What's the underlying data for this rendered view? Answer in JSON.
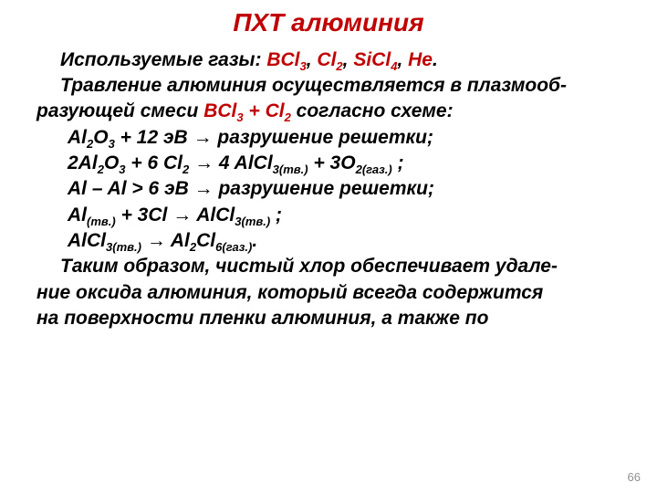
{
  "colors": {
    "red": "#c00000",
    "black": "#000000"
  },
  "title": "ПХТ алюминия",
  "gases_line": {
    "prefix": "Используемые газы: ",
    "g1a": "BCl",
    "g1s": "3",
    "sep1": ", ",
    "g2a": "Cl",
    "g2s": "2",
    "sep2": ", ",
    "g3a": "SiCl",
    "g3s": "4",
    "sep3": ", ",
    "g4": "He",
    "suffix": "."
  },
  "intro1": "Травление алюминия осуществляется в плазмооб-",
  "intro2_a": "разующей смеси ",
  "intro2_b": "BCl",
  "intro2_bs": "3",
  "intro2_c": " + Cl",
  "intro2_cs": "2",
  "intro2_d": " согласно схеме:",
  "eq1_a": "Al",
  "eq1_as": "2",
  "eq1_b": "O",
  "eq1_bs": "3",
  "eq1_c": " + 12 эВ ",
  "eq1_arrow": "→",
  "eq1_d": " разрушение решетки;",
  "eq2_a": "2Al",
  "eq2_as": "2",
  "eq2_b": "O",
  "eq2_bs": "3",
  "eq2_c": " + 6 Cl",
  "eq2_cs": "2",
  "eq2_d": " ",
  "eq2_arrow": "→",
  "eq2_e": " 4 AlCl",
  "eq2_es": "3(тв.)",
  "eq2_f": " + 3O",
  "eq2_fs": "2(газ.)",
  "eq2_g": " ;",
  "eq3_a": "Al – Al > 6 эВ ",
  "eq3_arrow": "→",
  "eq3_b": " разрушение решетки;",
  "eq4_a": "Al",
  "eq4_as": "(тв.)",
  "eq4_b": " + 3Cl ",
  "eq4_arrow": "→",
  "eq4_c": " AlCl",
  "eq4_cs": "3(тв.)",
  "eq4_d": " ;",
  "eq5_a": "AlCl",
  "eq5_as": "3(тв.)",
  "eq5_b": " ",
  "eq5_arrow": "→",
  "eq5_c": " Al",
  "eq5_cs": "2",
  "eq5_d": "Cl",
  "eq5_ds": "6(газ.)",
  "eq5_e": ".",
  "out1": "Таким образом, чистый хлор обеспечивает удале-",
  "out2": "ние оксида алюминия, который всегда содержится",
  "out3": "на поверхности пленки алюминия, а также по",
  "page_num": "66"
}
